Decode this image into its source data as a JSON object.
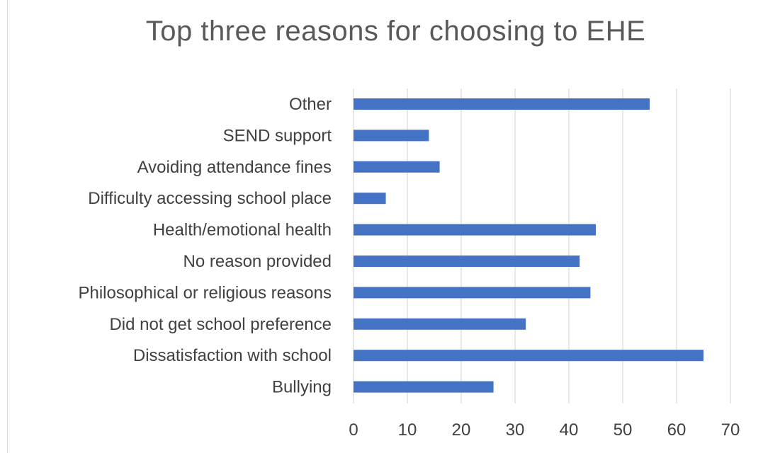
{
  "chart_data": {
    "type": "bar",
    "orientation": "horizontal",
    "title": "Top three reasons for choosing to EHE",
    "categories": [
      "Other",
      "SEND support",
      "Avoiding attendance fines",
      "Difficulty accessing school place",
      "Health/emotional health",
      "No reason provided",
      "Philosophical or religious reasons",
      "Did not get school preference",
      "Dissatisfaction with school",
      "Bullying"
    ],
    "values": [
      55,
      14,
      16,
      6,
      45,
      42,
      44,
      32,
      65,
      26
    ],
    "xlim": [
      0,
      70
    ],
    "xticks": [
      "0",
      "10",
      "20",
      "30",
      "40",
      "50",
      "60",
      "70"
    ],
    "grid": true,
    "legend": "none",
    "bar_color": "#4472c4",
    "grid_color": "#d9d9d9"
  }
}
